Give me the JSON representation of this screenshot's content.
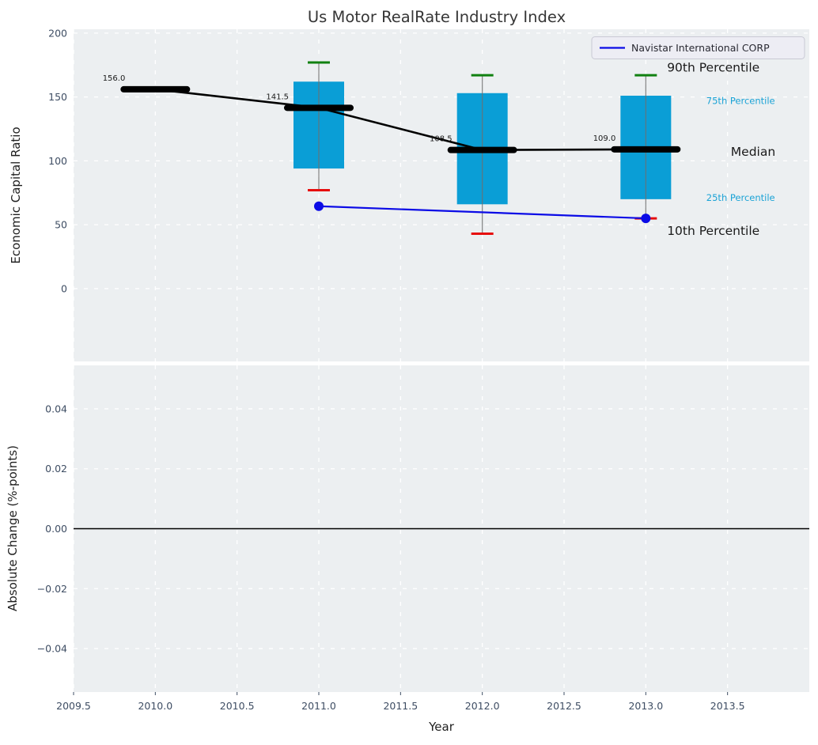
{
  "title": "Us Motor RealRate Industry Index",
  "xlabel": "Year",
  "legend": {
    "label": "Navistar International CORP"
  },
  "colors": {
    "figure_bg": "#ffffff",
    "axes_bg": "#eceff1",
    "grid": "#ffffff",
    "box_fill": "#0a9ed6",
    "whisker": "#6f6f6f",
    "cap_high": "#108010",
    "cap_low": "#e60d0d",
    "median_line": "#000000",
    "company_line": "#0b0be6",
    "zero_line": "#000000",
    "tick_label": "#3e4d63",
    "title_color": "#363636",
    "axis_label_color": "#1f1f1f",
    "annotation_dark": "#1a1a1a",
    "annotation_cyan": "#1ba3d6",
    "legend_bg": "#ededf4",
    "legend_border": "#c9c9d4",
    "value_label_color": "#1a1a1a"
  },
  "chart_data": [
    {
      "type": "boxplot",
      "title": "Us Motor RealRate Industry Index",
      "xlabel": "Year",
      "ylabel": "Economic Capital Ratio",
      "xlim": [
        2009.5,
        2014.0
      ],
      "ylim": [
        -57,
        203
      ],
      "grid": "white dashed",
      "legend_position": "upper right",
      "x_ticks": [
        2009.5,
        2010.0,
        2010.5,
        2011.0,
        2011.5,
        2012.0,
        2012.5,
        2013.0,
        2013.5
      ],
      "x_tick_labels": [
        "2009.5",
        "2010.0",
        "2010.5",
        "2011.0",
        "2011.5",
        "2012.0",
        "2012.5",
        "2013.0",
        "2013.5"
      ],
      "y_ticks": [
        0,
        50,
        100,
        150,
        200
      ],
      "y_tick_labels": [
        "0",
        "50",
        "100",
        "150",
        "200"
      ],
      "median_line": {
        "x": [
          2010,
          2011,
          2012,
          2013
        ],
        "values": [
          156.0,
          141.5,
          108.5,
          109.0
        ],
        "labels": [
          "156.0",
          "141.5",
          "108.5",
          "109.0"
        ]
      },
      "boxes": [
        {
          "x": 2011,
          "p90": 177,
          "p75": 162,
          "median": 141.5,
          "p25": 94,
          "p10": 77
        },
        {
          "x": 2012,
          "p90": 167,
          "p75": 153,
          "median": 108.5,
          "p25": 66,
          "p10": 43
        },
        {
          "x": 2013,
          "p90": 167,
          "p75": 151,
          "median": 109.0,
          "p25": 70,
          "p10": 55
        }
      ],
      "series": [
        {
          "name": "Navistar International CORP",
          "x": [
            2011,
            2013
          ],
          "values": [
            64.5,
            55.0
          ]
        }
      ],
      "annotations": [
        {
          "text": "90th Percentile",
          "x": 2013.13,
          "y": 173,
          "tone": "dark",
          "size": "large"
        },
        {
          "text": "75th Percentile",
          "x": 2013.37,
          "y": 147,
          "tone": "cyan",
          "size": "small"
        },
        {
          "text": "Median",
          "x": 2013.52,
          "y": 107,
          "tone": "dark",
          "size": "large"
        },
        {
          "text": "25th Percentile",
          "x": 2013.37,
          "y": 71,
          "tone": "cyan",
          "size": "small"
        },
        {
          "text": "10th Percentile",
          "x": 2013.13,
          "y": 45,
          "tone": "dark",
          "size": "large"
        }
      ]
    },
    {
      "type": "line",
      "ylabel": "Absolute Change (%-points)",
      "xlabel": "Year",
      "xlim": [
        2009.5,
        2014.0
      ],
      "ylim": [
        -0.0545,
        0.0545
      ],
      "grid": "white dashed",
      "y_ticks": [
        0.04,
        0.02,
        0.0,
        -0.02,
        -0.04
      ],
      "y_tick_labels": [
        "0.04",
        "0.02",
        "0.00",
        "−0.02",
        "−0.04"
      ],
      "zero_line": 0.0,
      "series": []
    }
  ]
}
